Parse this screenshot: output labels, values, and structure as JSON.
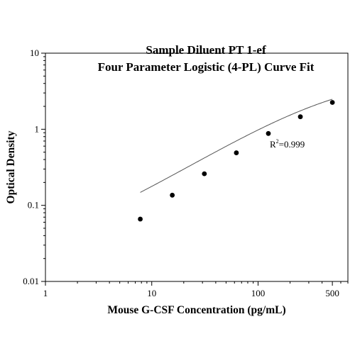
{
  "chart_data": {
    "type": "scatter",
    "title_lines": [
      "Sample Diluent PT 1-ef",
      "Four Parameter Logistic (4-PL) Curve Fit"
    ],
    "xlabel": "Mouse G-CSF Concentration (pg/mL)",
    "ylabel": "Optical Density",
    "x_scale": "log",
    "y_scale": "log",
    "xlim": [
      1,
      700
    ],
    "ylim": [
      0.01,
      10
    ],
    "x_tick_values": [
      1,
      10,
      100,
      500
    ],
    "x_tick_labels": [
      "1",
      "10",
      "100",
      "500"
    ],
    "y_tick_values": [
      0.01,
      0.1,
      1,
      10
    ],
    "y_tick_labels": [
      "0.01",
      "0.1",
      "1",
      "10"
    ],
    "grid": false,
    "series": [
      {
        "marker": "circle",
        "color": "#000000",
        "x": [
          7.8,
          15.6,
          31.25,
          62.5,
          125,
          250,
          500
        ],
        "y": [
          0.066,
          0.136,
          0.26,
          0.49,
          0.88,
          1.46,
          2.25
        ]
      }
    ],
    "fit_curve": {
      "model": "4-PL",
      "color": "#555555",
      "x_range": [
        7.8,
        500
      ],
      "A": 0.02,
      "B": 0.86,
      "C": 560,
      "D": 5.2
    },
    "annotation": {
      "prefix": "R",
      "superscript": "2",
      "suffix": "=0.999",
      "anchor": [
        125,
        0.67
      ]
    }
  }
}
